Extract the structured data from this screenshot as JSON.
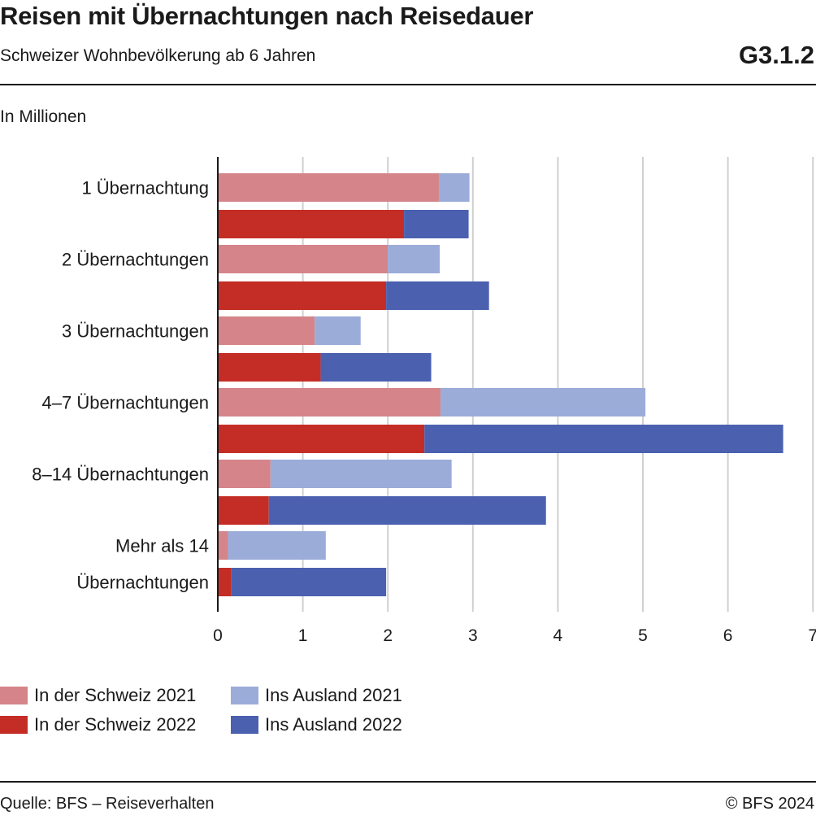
{
  "header": {
    "title": "Reisen mit Übernachtungen nach Reisedauer",
    "subtitle": "Schweizer Wohnbevölkerung ab 6 Jahren",
    "code": "G3.1.2",
    "unit": "In Millionen"
  },
  "footer": {
    "source": "Quelle: BFS – Reiseverhalten",
    "copyright": "© BFS 2024"
  },
  "chart_data": {
    "type": "bar",
    "orientation": "horizontal",
    "stacked": true,
    "xlim": [
      0,
      7
    ],
    "xticks": [
      "0",
      "1",
      "2",
      "3",
      "4",
      "5",
      "6",
      "7"
    ],
    "grid": "vertical",
    "legend_position": "bottom",
    "categories": [
      "1 Übernachtung",
      "2 Übernachtungen",
      "3 Übernachtungen",
      "4–7 Übernachtungen",
      "8–14 Übernachtungen",
      "Mehr als 14 Übernachtungen"
    ],
    "category_label_lines": [
      [
        "1 Übernachtung"
      ],
      [
        "2 Übernachtungen"
      ],
      [
        "3 Übernachtungen"
      ],
      [
        "4–7 Übernachtungen"
      ],
      [
        "8–14 Übernachtungen"
      ],
      [
        "Mehr als 14",
        "Übernachtungen"
      ]
    ],
    "years": [
      {
        "year": "2021",
        "series": [
          {
            "name": "In der Schweiz 2021",
            "color": "#d5848a",
            "values": [
              2.6,
              2.0,
              1.14,
              2.62,
              0.62,
              0.12
            ]
          },
          {
            "name": "Ins Ausland 2021",
            "color": "#9bacd9",
            "values": [
              0.36,
              0.61,
              0.54,
              2.41,
              2.13,
              1.15
            ]
          }
        ]
      },
      {
        "year": "2022",
        "series": [
          {
            "name": "In der Schweiz 2022",
            "color": "#c42d26",
            "values": [
              2.19,
              1.98,
              1.21,
              2.43,
              0.6,
              0.16
            ]
          },
          {
            "name": "Ins Ausland 2022",
            "color": "#4b61b0",
            "values": [
              0.76,
              1.21,
              1.3,
              4.22,
              3.26,
              1.82
            ]
          }
        ]
      }
    ]
  }
}
